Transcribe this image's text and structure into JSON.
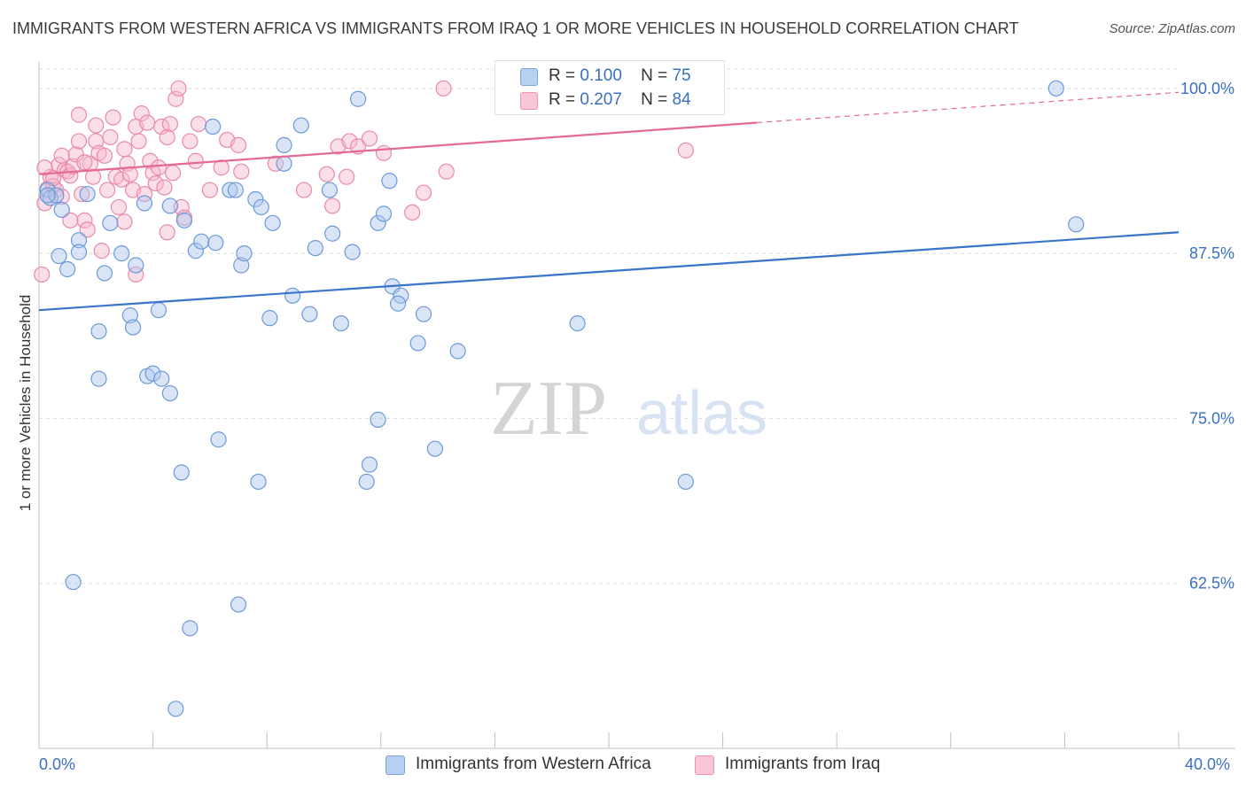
{
  "header": {
    "title": "IMMIGRANTS FROM WESTERN AFRICA VS IMMIGRANTS FROM IRAQ 1 OR MORE VEHICLES IN HOUSEHOLD CORRELATION CHART",
    "source": "Source: ZipAtlas.com"
  },
  "legend": {
    "r_label": "R =",
    "n_label": "N =",
    "rows": [
      {
        "r": "0.100",
        "n": "75"
      },
      {
        "r": "0.207",
        "n": "84"
      }
    ]
  },
  "watermark": {
    "zip": "ZIP",
    "atlas": "atlas"
  },
  "colors": {
    "blue_fill": "#aac6ee",
    "blue_stroke": "#6c9ad8",
    "blue_line": "#3a76c8",
    "pink_fill": "#f7b8cc",
    "pink_stroke": "#e88aa8",
    "pink_line": "#e56a93",
    "tick_label": "#3a6fc4"
  },
  "chart_data": {
    "type": "scatter",
    "title": "IMMIGRANTS FROM WESTERN AFRICA VS IMMIGRANTS FROM IRAQ 1 OR MORE VEHICLES IN HOUSEHOLD CORRELATION CHART",
    "xlabel": "",
    "ylabel": "1 or more Vehicles in Household",
    "xlim": [
      0,
      40
    ],
    "ylim": [
      50,
      102
    ],
    "x_tick_labels": [
      "0.0%",
      "40.0%"
    ],
    "y_ticks": [
      62.5,
      75.0,
      87.5,
      100.0
    ],
    "y_tick_labels": [
      "62.5%",
      "75.0%",
      "87.5%",
      "100.0%"
    ],
    "grid": true,
    "legend_position": "top-center",
    "series": [
      {
        "name": "Immigrants from Western Africa",
        "color": "#aac6ee",
        "trend": {
          "x": [
            0,
            40
          ],
          "y": [
            83.2,
            89.1
          ],
          "solid_to": 40
        },
        "points": [
          [
            0.3,
            92.3
          ],
          [
            0.4,
            91.7
          ],
          [
            0.6,
            91.9
          ],
          [
            0.8,
            90.8
          ],
          [
            0.7,
            87.3
          ],
          [
            1.0,
            86.3
          ],
          [
            1.4,
            88.5
          ],
          [
            1.4,
            87.6
          ],
          [
            1.7,
            92.0
          ],
          [
            2.3,
            86.0
          ],
          [
            2.5,
            89.8
          ],
          [
            2.9,
            87.5
          ],
          [
            3.2,
            82.8
          ],
          [
            3.3,
            81.9
          ],
          [
            3.4,
            86.6
          ],
          [
            2.1,
            78.0
          ],
          [
            2.1,
            81.6
          ],
          [
            3.7,
            91.3
          ],
          [
            3.8,
            78.2
          ],
          [
            4.0,
            78.4
          ],
          [
            4.2,
            83.2
          ],
          [
            4.3,
            78.0
          ],
          [
            4.6,
            76.9
          ],
          [
            4.6,
            91.1
          ],
          [
            5.1,
            90.0
          ],
          [
            5.5,
            87.7
          ],
          [
            5.7,
            88.4
          ],
          [
            6.2,
            88.3
          ],
          [
            6.1,
            97.1
          ],
          [
            6.3,
            73.4
          ],
          [
            6.7,
            92.3
          ],
          [
            6.9,
            92.3
          ],
          [
            7.1,
            86.6
          ],
          [
            7.2,
            87.5
          ],
          [
            7.6,
            91.6
          ],
          [
            7.8,
            91.0
          ],
          [
            7.7,
            70.2
          ],
          [
            8.1,
            82.6
          ],
          [
            8.2,
            89.8
          ],
          [
            8.6,
            94.3
          ],
          [
            8.6,
            95.7
          ],
          [
            8.9,
            84.3
          ],
          [
            9.2,
            97.2
          ],
          [
            9.5,
            82.9
          ],
          [
            9.7,
            87.9
          ],
          [
            10.2,
            92.3
          ],
          [
            10.3,
            89.0
          ],
          [
            10.6,
            82.2
          ],
          [
            11.0,
            87.6
          ],
          [
            11.2,
            99.2
          ],
          [
            11.5,
            70.2
          ],
          [
            11.6,
            71.5
          ],
          [
            11.9,
            89.8
          ],
          [
            12.1,
            90.5
          ],
          [
            11.9,
            74.9
          ],
          [
            12.4,
            85.0
          ],
          [
            12.7,
            84.3
          ],
          [
            12.6,
            83.7
          ],
          [
            13.3,
            80.7
          ],
          [
            13.5,
            82.9
          ],
          [
            13.9,
            72.7
          ],
          [
            14.7,
            80.1
          ],
          [
            16.3,
            99.1
          ],
          [
            17.9,
            100.0
          ],
          [
            18.9,
            82.2
          ],
          [
            22.7,
            70.2
          ],
          [
            36.4,
            89.7
          ],
          [
            35.7,
            100.0
          ],
          [
            1.2,
            62.6
          ],
          [
            5.0,
            70.9
          ],
          [
            5.3,
            59.1
          ],
          [
            7.0,
            60.9
          ],
          [
            4.8,
            53.0
          ],
          [
            0.3,
            91.9
          ],
          [
            12.3,
            93.0
          ]
        ]
      },
      {
        "name": "Immigrants from Iraq",
        "color": "#f7b8cc",
        "trend": {
          "x": [
            0,
            40
          ],
          "y": [
            93.5,
            99.7
          ],
          "solid_to": 25.2
        },
        "points": [
          [
            0.1,
            85.9
          ],
          [
            0.2,
            91.3
          ],
          [
            0.3,
            92.4
          ],
          [
            0.4,
            93.3
          ],
          [
            0.5,
            92.6
          ],
          [
            0.6,
            92.3
          ],
          [
            0.7,
            94.2
          ],
          [
            0.8,
            94.9
          ],
          [
            0.9,
            93.8
          ],
          [
            1.0,
            93.7
          ],
          [
            1.1,
            93.4
          ],
          [
            1.2,
            94.1
          ],
          [
            1.3,
            95.0
          ],
          [
            1.4,
            96.0
          ],
          [
            1.5,
            92.0
          ],
          [
            1.6,
            90.0
          ],
          [
            1.7,
            89.3
          ],
          [
            1.8,
            94.3
          ],
          [
            1.9,
            93.3
          ],
          [
            2.0,
            96.0
          ],
          [
            2.1,
            95.1
          ],
          [
            2.2,
            87.7
          ],
          [
            2.3,
            94.9
          ],
          [
            2.4,
            92.3
          ],
          [
            2.5,
            96.3
          ],
          [
            2.6,
            97.8
          ],
          [
            2.7,
            93.3
          ],
          [
            2.8,
            91.0
          ],
          [
            2.9,
            93.1
          ],
          [
            3.0,
            95.4
          ],
          [
            3.1,
            94.3
          ],
          [
            3.2,
            93.5
          ],
          [
            3.3,
            92.3
          ],
          [
            3.4,
            97.1
          ],
          [
            3.5,
            96.0
          ],
          [
            3.6,
            98.1
          ],
          [
            3.7,
            92.0
          ],
          [
            3.8,
            97.4
          ],
          [
            3.9,
            94.5
          ],
          [
            4.0,
            93.6
          ],
          [
            4.1,
            92.8
          ],
          [
            4.2,
            94.0
          ],
          [
            4.3,
            97.1
          ],
          [
            4.4,
            92.5
          ],
          [
            4.5,
            89.1
          ],
          [
            4.6,
            97.3
          ],
          [
            4.7,
            93.6
          ],
          [
            4.8,
            99.2
          ],
          [
            4.9,
            100.0
          ],
          [
            5.0,
            91.0
          ],
          [
            5.1,
            90.2
          ],
          [
            5.3,
            96.0
          ],
          [
            5.5,
            94.5
          ],
          [
            6.0,
            92.3
          ],
          [
            6.6,
            96.1
          ],
          [
            7.0,
            95.7
          ],
          [
            7.1,
            93.7
          ],
          [
            9.3,
            92.3
          ],
          [
            10.1,
            93.5
          ],
          [
            10.3,
            91.1
          ],
          [
            10.5,
            95.6
          ],
          [
            10.9,
            96.0
          ],
          [
            11.2,
            95.6
          ],
          [
            11.6,
            96.2
          ],
          [
            12.1,
            95.1
          ],
          [
            13.1,
            90.6
          ],
          [
            13.5,
            92.1
          ],
          [
            14.3,
            93.7
          ],
          [
            14.2,
            100.0
          ],
          [
            22.7,
            95.3
          ],
          [
            3.4,
            85.9
          ],
          [
            2.0,
            97.2
          ],
          [
            1.1,
            90.0
          ],
          [
            1.6,
            94.4
          ],
          [
            0.2,
            94.0
          ],
          [
            0.5,
            93.2
          ],
          [
            0.8,
            91.8
          ],
          [
            3.0,
            89.9
          ],
          [
            4.5,
            96.3
          ],
          [
            5.6,
            97.3
          ],
          [
            6.4,
            94.0
          ],
          [
            8.3,
            94.3
          ],
          [
            10.8,
            93.3
          ],
          [
            1.4,
            98.0
          ]
        ]
      }
    ]
  },
  "bottom_legend": {
    "items": [
      "Immigrants from Western Africa",
      "Immigrants from Iraq"
    ]
  },
  "x_axis": {
    "min_label": "0.0%",
    "max_label": "40.0%"
  }
}
